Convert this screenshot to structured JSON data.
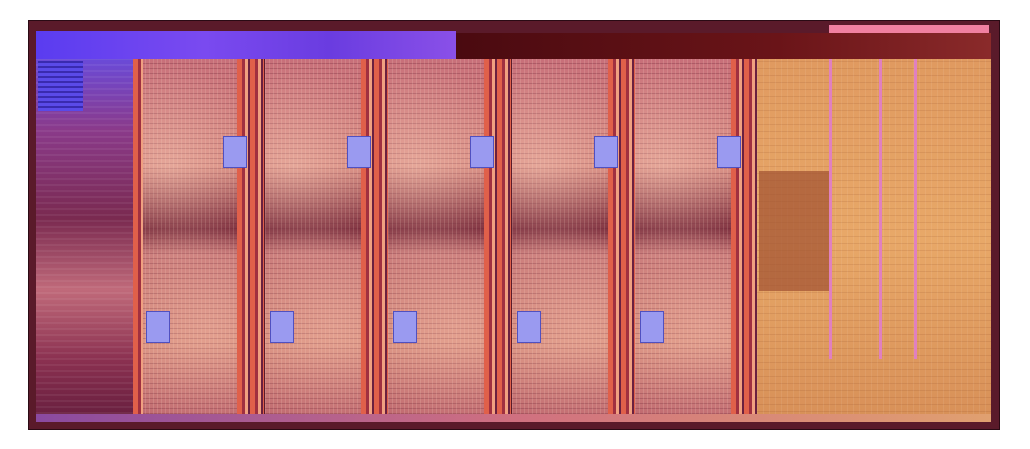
{
  "image": {
    "subject": "die-shot",
    "cores": 5,
    "colors": {
      "io_blue": "#6a3ce0",
      "top_bar_dark": "#6a1418",
      "core_pink": "#c87878",
      "ring_orange": "#e0604a",
      "gpu_orange": "#e8a868",
      "cache_lavender": "#9a9af0"
    }
  }
}
